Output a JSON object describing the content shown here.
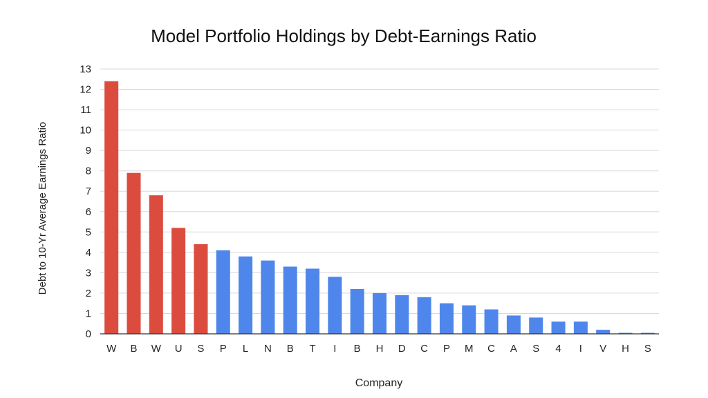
{
  "chart_data": {
    "type": "bar",
    "title": "Model Portfolio Holdings by Debt-Earnings Ratio",
    "xlabel": "Company",
    "ylabel": "Debt to 10-Yr Average Earnings Ratio",
    "categories": [
      "W",
      "B",
      "W",
      "U",
      "S",
      "P",
      "L",
      "N",
      "B",
      "T",
      "I",
      "B",
      "H",
      "D",
      "C",
      "P",
      "M",
      "C",
      "A",
      "S",
      "4",
      "I",
      "V",
      "H",
      "S"
    ],
    "values": [
      12.4,
      7.9,
      6.8,
      5.2,
      4.4,
      4.1,
      3.8,
      3.6,
      3.3,
      3.2,
      2.8,
      2.2,
      2.0,
      1.9,
      1.8,
      1.5,
      1.4,
      1.2,
      0.9,
      0.8,
      0.6,
      0.6,
      0.2,
      0.05,
      0.05
    ],
    "highlighted_count": 5,
    "colors": {
      "highlight": "#db4c3f",
      "default": "#4f86ec",
      "grid": "#d9d9d9",
      "axis": "#333333",
      "text": "#222222"
    },
    "ylim": [
      0,
      13
    ],
    "yticks": [
      0,
      1,
      2,
      3,
      4,
      5,
      6,
      7,
      8,
      9,
      10,
      11,
      12,
      13
    ],
    "grid": true,
    "legend": "none"
  }
}
